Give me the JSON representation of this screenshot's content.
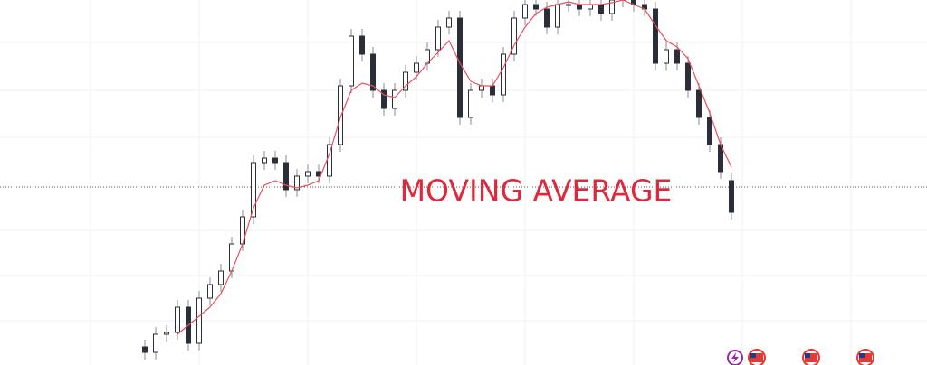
{
  "chart_data": {
    "type": "candlestick",
    "annotation": "MOVING AVERAGE",
    "ylim": [
      0,
      404
    ],
    "up_color": "#ffffff",
    "down_color": "#2a2e39",
    "wick_color": "#8a8d96",
    "open": [
      20,
      14,
      34,
      36,
      64,
      24,
      74,
      89,
      104,
      134,
      164,
      224,
      229,
      224,
      194,
      209,
      214,
      209,
      244,
      309,
      364,
      344,
      304,
      284,
      304,
      324,
      334,
      349,
      374,
      384,
      274,
      304,
      309,
      299,
      344,
      384,
      399,
      394,
      374,
      399,
      399,
      394,
      399,
      389,
      404,
      409,
      399,
      394,
      334,
      349,
      334,
      304,
      274,
      244,
      204
    ],
    "high": [
      28,
      42,
      44,
      72,
      72,
      82,
      97,
      112,
      142,
      172,
      232,
      237,
      237,
      232,
      217,
      222,
      222,
      252,
      317,
      372,
      372,
      352,
      312,
      312,
      332,
      342,
      357,
      382,
      392,
      392,
      312,
      317,
      317,
      352,
      392,
      407,
      407,
      402,
      407,
      407,
      407,
      407,
      407,
      412,
      417,
      417,
      407,
      402,
      357,
      357,
      342,
      312,
      282,
      252,
      212
    ],
    "low": [
      6,
      6,
      26,
      28,
      16,
      16,
      66,
      81,
      96,
      126,
      156,
      216,
      216,
      186,
      186,
      201,
      201,
      201,
      236,
      301,
      336,
      296,
      276,
      276,
      296,
      316,
      326,
      341,
      366,
      266,
      266,
      296,
      291,
      291,
      336,
      376,
      386,
      366,
      366,
      391,
      386,
      386,
      381,
      381,
      396,
      391,
      386,
      326,
      326,
      326,
      296,
      266,
      236,
      206,
      161
    ],
    "close": [
      14,
      34,
      36,
      64,
      24,
      74,
      89,
      104,
      134,
      164,
      224,
      229,
      224,
      194,
      209,
      214,
      209,
      244,
      309,
      364,
      344,
      304,
      284,
      304,
      324,
      334,
      349,
      374,
      384,
      274,
      304,
      309,
      299,
      344,
      384,
      399,
      394,
      374,
      399,
      399,
      394,
      399,
      389,
      404,
      409,
      399,
      394,
      334,
      349,
      334,
      304,
      274,
      244,
      214,
      169
    ],
    "moving_average": {
      "color": "#e8505b",
      "values": [
        null,
        null,
        null,
        34,
        44,
        54,
        64,
        79,
        104,
        134,
        174,
        199,
        204,
        199,
        196,
        199,
        204,
        234,
        274,
        304,
        312,
        309,
        299,
        296,
        309,
        319,
        334,
        346,
        359,
        334,
        314,
        309,
        309,
        329,
        354,
        374,
        389,
        396,
        399,
        402,
        399,
        399,
        399,
        401,
        404,
        399,
        394,
        376,
        359,
        352,
        339,
        309,
        279,
        244,
        219
      ]
    },
    "price_line": 197,
    "grid": true
  }
}
